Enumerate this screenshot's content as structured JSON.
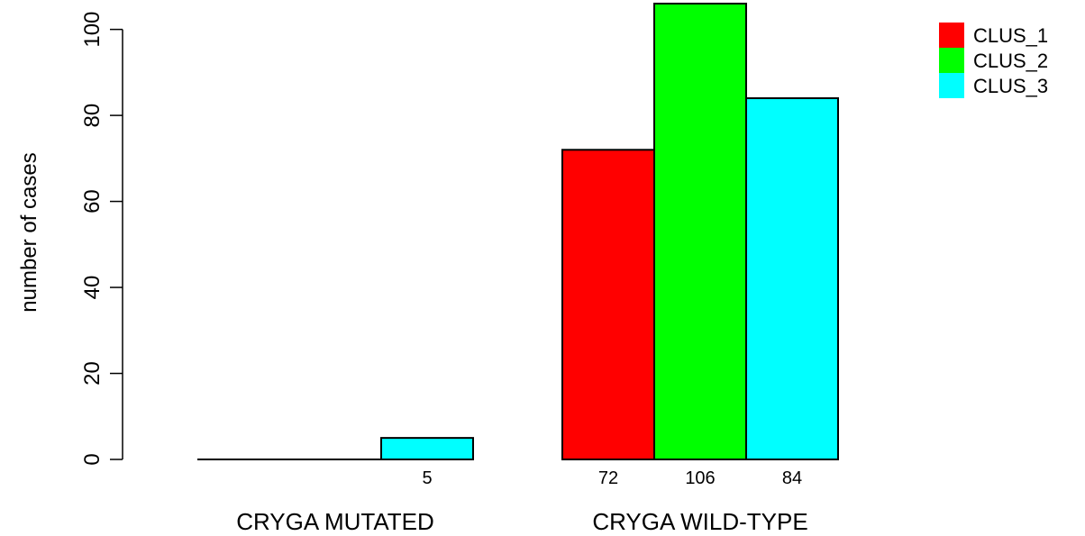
{
  "chart_data": {
    "type": "bar",
    "categories": [
      "CRYGA MUTATED",
      "CRYGA WILD-TYPE"
    ],
    "series": [
      {
        "name": "CLUS_1",
        "values": [
          0,
          72
        ],
        "color": "#ff0000"
      },
      {
        "name": "CLUS_2",
        "values": [
          0,
          106
        ],
        "color": "#00ff00"
      },
      {
        "name": "CLUS_3",
        "values": [
          5,
          84
        ],
        "color": "#00ffff"
      }
    ],
    "bar_labels": [
      [
        "",
        "",
        "5"
      ],
      [
        "72",
        "106",
        "84"
      ]
    ],
    "ylabel": "number of cases",
    "xlabel": "",
    "ylim": [
      0,
      106
    ],
    "yticks": [
      0,
      20,
      40,
      60,
      80,
      100
    ],
    "legend_position": "top-right",
    "grid": false
  }
}
